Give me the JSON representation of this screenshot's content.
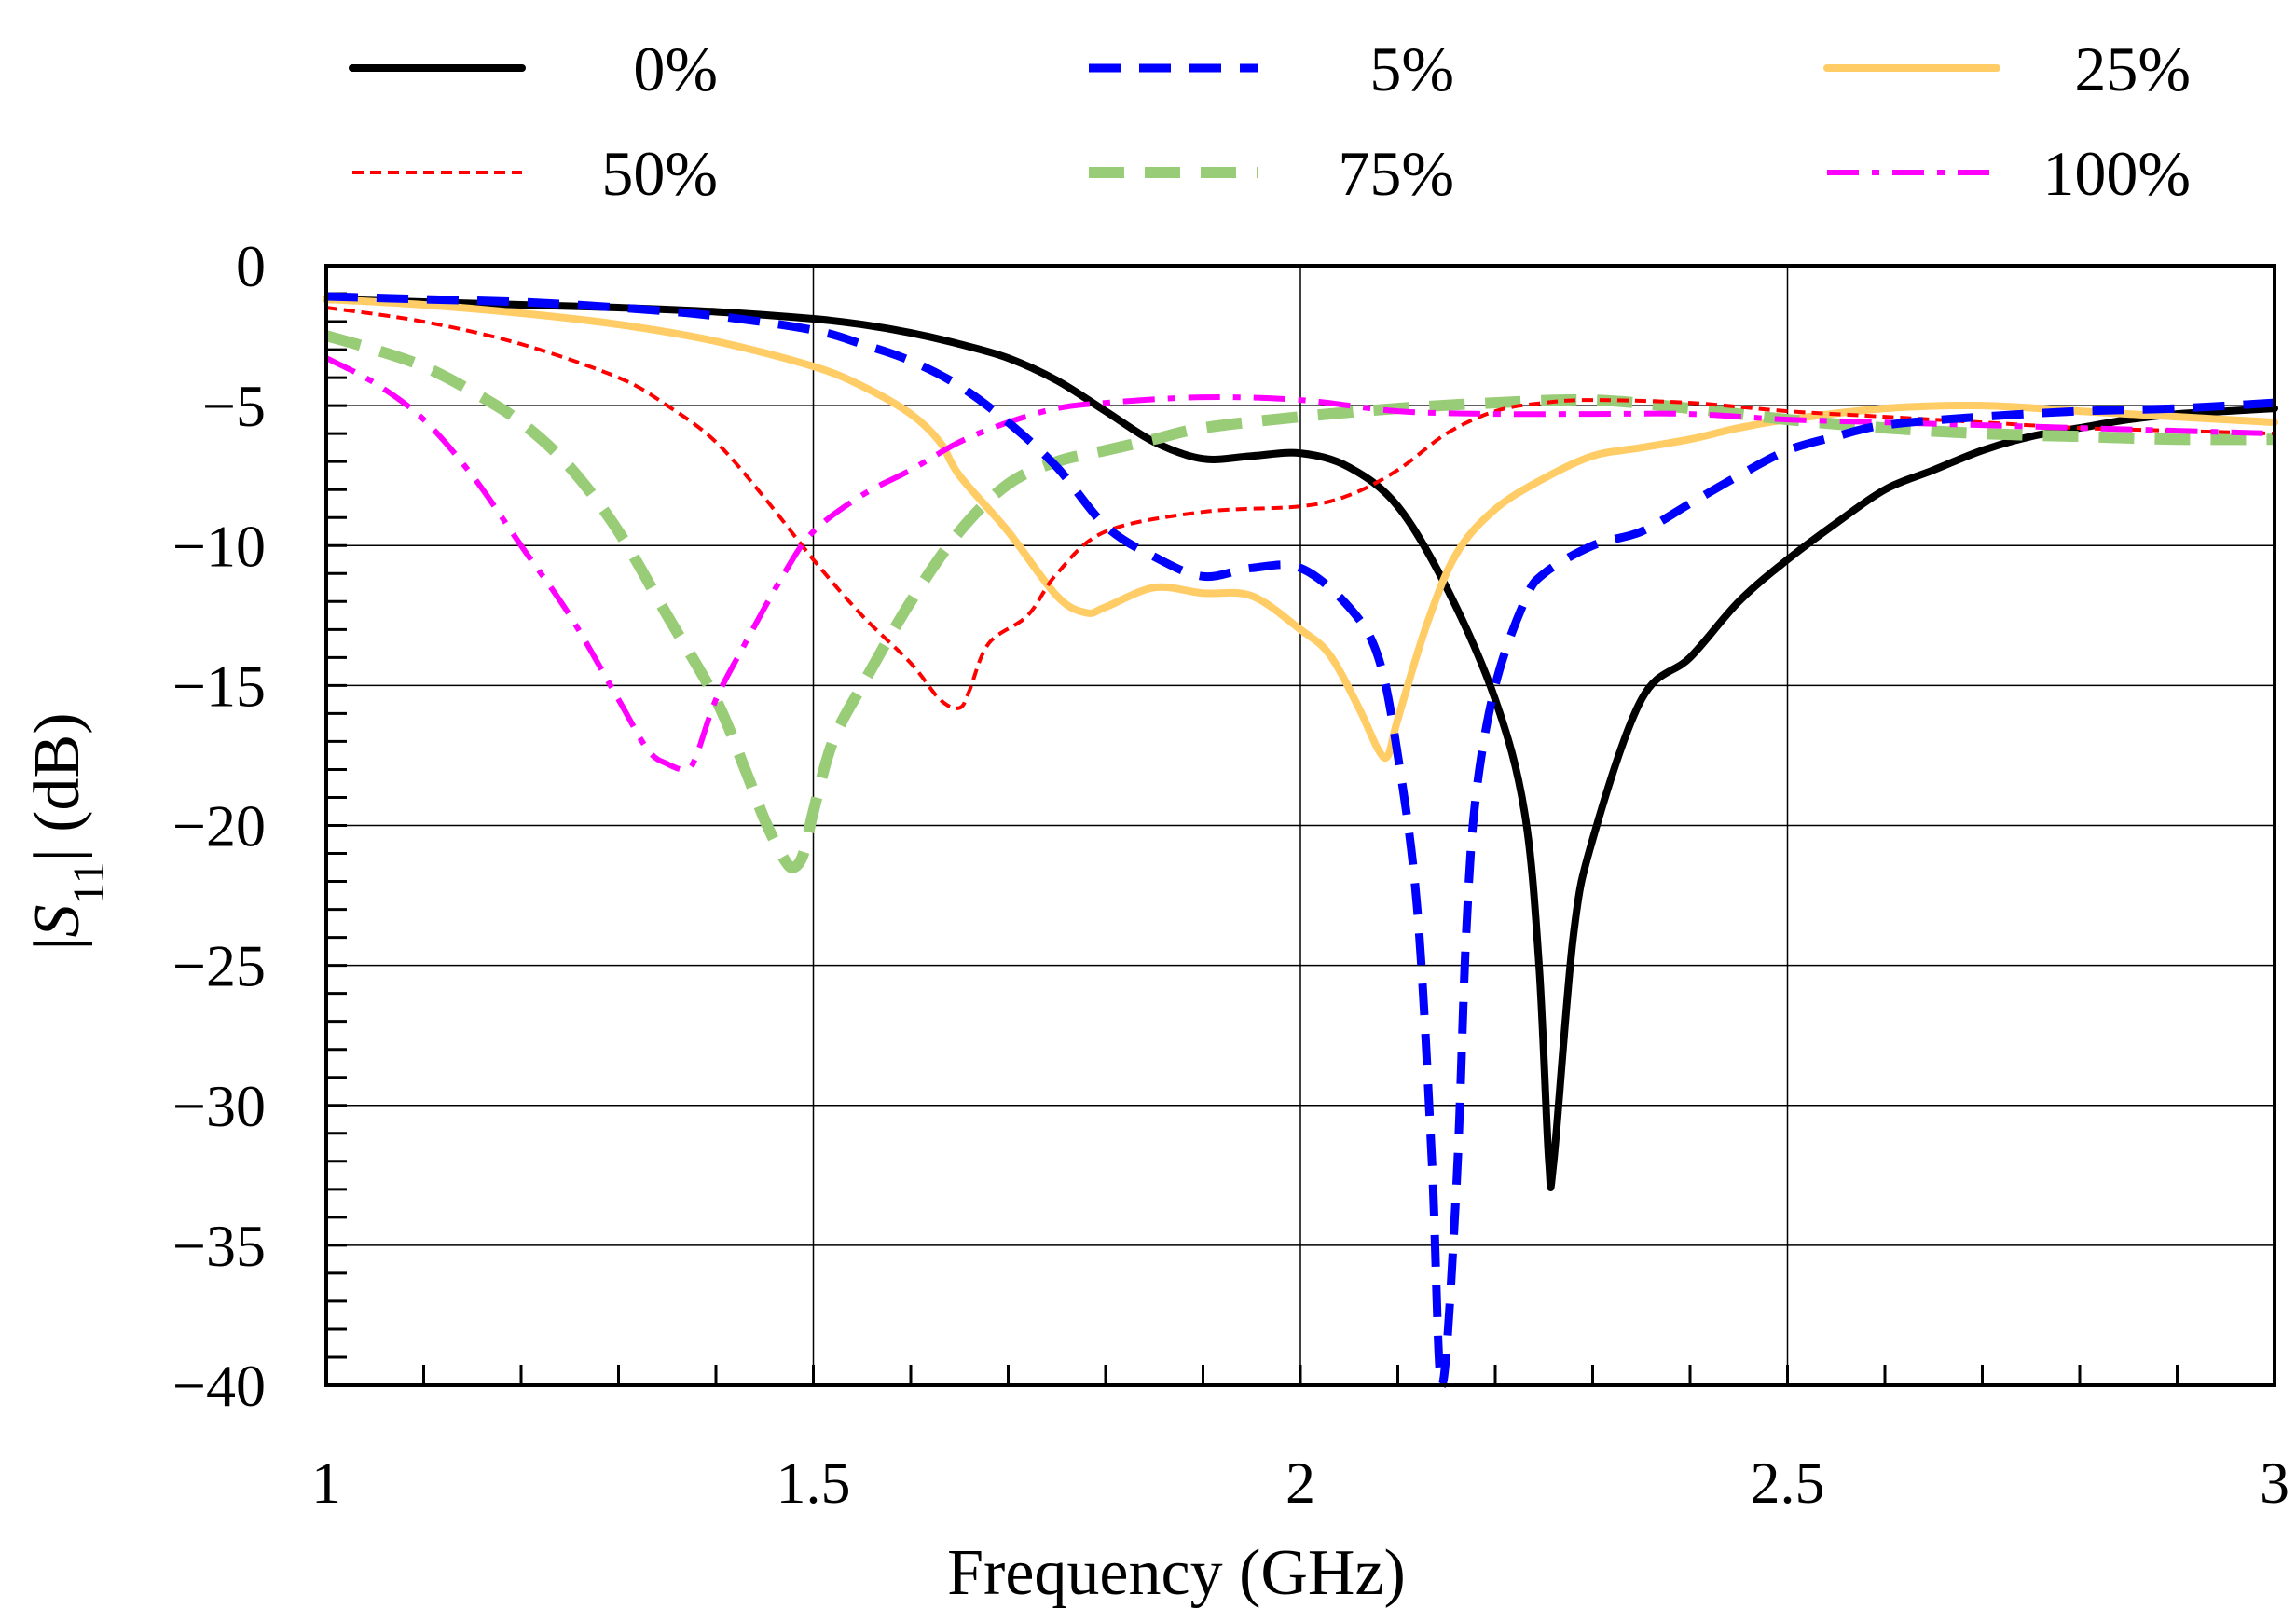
{
  "chart_data": {
    "type": "line",
    "title": "",
    "xlabel": "Frequency (GHz)",
    "ylabel": "|S11| (dB)",
    "ylabel_parts": {
      "pre": "|",
      "symbol": "S",
      "sub": "11",
      "post": "| (dB)"
    },
    "xlim": [
      1,
      3
    ],
    "ylim": [
      -40,
      0
    ],
    "xticks": [
      1,
      1.5,
      2,
      2.5,
      3
    ],
    "xtick_labels": [
      "1",
      "1.5",
      "2",
      "2.5",
      "3"
    ],
    "yticks": [
      0,
      -5,
      -10,
      -15,
      -20,
      -25,
      -30,
      -35,
      -40
    ],
    "ytick_labels": [
      "0",
      "−5",
      "−10",
      "−15",
      "−20",
      "−25",
      "−30",
      "−35",
      "−40"
    ],
    "grid": true,
    "legend_position": "top",
    "series": [
      {
        "name": "0%",
        "color": "#000000",
        "dash": "solid",
        "x": [
          1.0,
          1.1,
          1.2,
          1.3,
          1.4,
          1.5,
          1.55,
          1.6,
          1.65,
          1.7,
          1.75,
          1.8,
          1.85,
          1.9,
          1.95,
          2.0,
          2.05,
          2.1,
          2.15,
          2.2,
          2.23,
          2.245,
          2.255,
          2.26,
          2.28,
          2.3,
          2.35,
          2.4,
          2.45,
          2.5,
          2.55,
          2.6,
          2.65,
          2.7,
          2.75,
          2.8,
          2.85,
          2.9,
          2.95,
          3.0
        ],
        "y": [
          -1.2,
          -1.3,
          -1.4,
          -1.5,
          -1.65,
          -1.9,
          -2.1,
          -2.4,
          -2.8,
          -3.3,
          -4.1,
          -5.2,
          -6.3,
          -6.9,
          -6.8,
          -6.7,
          -7.2,
          -8.6,
          -11.5,
          -15.5,
          -19.5,
          -25.0,
          -32.0,
          -32.0,
          -24.0,
          -20.5,
          -15.5,
          -14.0,
          -12.0,
          -10.5,
          -9.2,
          -8.0,
          -7.3,
          -6.6,
          -6.1,
          -5.8,
          -5.5,
          -5.3,
          -5.2,
          -5.1
        ]
      },
      {
        "name": "5%",
        "color": "#0000FF",
        "dash": "dashed",
        "x": [
          1.0,
          1.1,
          1.2,
          1.3,
          1.4,
          1.5,
          1.55,
          1.6,
          1.65,
          1.7,
          1.75,
          1.8,
          1.85,
          1.9,
          1.95,
          2.0,
          2.05,
          2.08,
          2.1,
          2.12,
          2.135,
          2.145,
          2.16,
          2.17,
          2.18,
          2.2,
          2.23,
          2.25,
          2.3,
          2.35,
          2.4,
          2.45,
          2.5,
          2.55,
          2.6,
          2.7,
          2.8,
          2.9,
          3.0
        ],
        "y": [
          -1.1,
          -1.2,
          -1.3,
          -1.5,
          -1.8,
          -2.3,
          -2.8,
          -3.4,
          -4.3,
          -5.6,
          -7.2,
          -9.3,
          -10.4,
          -11.1,
          -10.8,
          -10.8,
          -12.2,
          -14.0,
          -17.5,
          -23.0,
          -32.0,
          -40.0,
          -33.0,
          -24.0,
          -19.0,
          -15.0,
          -12.0,
          -11.0,
          -10.0,
          -9.5,
          -8.5,
          -7.5,
          -6.6,
          -6.1,
          -5.7,
          -5.4,
          -5.2,
          -5.1,
          -4.9
        ]
      },
      {
        "name": "25%",
        "color": "#FFCC66",
        "dash": "solid",
        "x": [
          1.0,
          1.1,
          1.2,
          1.3,
          1.4,
          1.5,
          1.55,
          1.6,
          1.63,
          1.65,
          1.7,
          1.75,
          1.78,
          1.8,
          1.85,
          1.9,
          1.95,
          2.0,
          2.03,
          2.06,
          2.08,
          2.09,
          2.1,
          2.13,
          2.16,
          2.2,
          2.25,
          2.3,
          2.35,
          2.4,
          2.45,
          2.5,
          2.6,
          2.7,
          2.8,
          2.9,
          3.0
        ],
        "y": [
          -1.2,
          -1.4,
          -1.7,
          -2.1,
          -2.7,
          -3.6,
          -4.3,
          -5.3,
          -6.3,
          -7.5,
          -9.5,
          -11.8,
          -12.4,
          -12.2,
          -11.5,
          -11.7,
          -11.8,
          -13.0,
          -13.9,
          -15.8,
          -17.3,
          -17.5,
          -16.2,
          -12.8,
          -10.3,
          -8.7,
          -7.6,
          -6.8,
          -6.5,
          -6.2,
          -5.8,
          -5.5,
          -5.1,
          -5.0,
          -5.2,
          -5.4,
          -5.6
        ]
      },
      {
        "name": "50%",
        "color": "#FF0000",
        "dash": "dotted",
        "x": [
          1.0,
          1.1,
          1.2,
          1.3,
          1.35,
          1.4,
          1.45,
          1.5,
          1.55,
          1.6,
          1.63,
          1.65,
          1.66,
          1.68,
          1.72,
          1.75,
          1.8,
          1.9,
          2.0,
          2.05,
          2.1,
          2.15,
          2.2,
          2.25,
          2.3,
          2.4,
          2.5,
          2.6,
          2.7,
          2.8,
          2.9,
          3.0
        ],
        "y": [
          -1.5,
          -2.0,
          -2.8,
          -4.0,
          -5.0,
          -6.3,
          -8.3,
          -10.5,
          -12.5,
          -14.2,
          -15.5,
          -15.8,
          -15.2,
          -13.5,
          -12.5,
          -11.0,
          -9.5,
          -8.8,
          -8.6,
          -8.2,
          -7.3,
          -6.0,
          -5.2,
          -4.9,
          -4.8,
          -4.9,
          -5.2,
          -5.4,
          -5.6,
          -5.8,
          -5.9,
          -6.0
        ]
      },
      {
        "name": "75%",
        "color": "#99CC77",
        "dash": "dashed",
        "x": [
          1.0,
          1.05,
          1.1,
          1.15,
          1.2,
          1.25,
          1.3,
          1.35,
          1.4,
          1.43,
          1.45,
          1.47,
          1.48,
          1.49,
          1.5,
          1.52,
          1.55,
          1.6,
          1.65,
          1.7,
          1.75,
          1.8,
          1.85,
          1.9,
          2.0,
          2.1,
          2.2,
          2.3,
          2.4,
          2.5,
          2.6,
          2.7,
          2.8,
          2.9,
          3.0
        ],
        "y": [
          -2.5,
          -3.0,
          -3.6,
          -4.5,
          -5.6,
          -7.2,
          -9.5,
          -12.5,
          -15.5,
          -18.0,
          -19.8,
          -21.2,
          -21.5,
          -21.0,
          -19.5,
          -17.0,
          -15.0,
          -12.0,
          -9.5,
          -7.8,
          -7.0,
          -6.6,
          -6.2,
          -5.8,
          -5.4,
          -5.1,
          -4.9,
          -4.8,
          -5.1,
          -5.5,
          -5.8,
          -6.0,
          -6.1,
          -6.2,
          -6.2
        ]
      },
      {
        "name": "100%",
        "color": "#FF00FF",
        "dash": "dashdot",
        "x": [
          1.0,
          1.05,
          1.1,
          1.15,
          1.2,
          1.25,
          1.3,
          1.33,
          1.35,
          1.37,
          1.38,
          1.4,
          1.43,
          1.47,
          1.5,
          1.55,
          1.6,
          1.65,
          1.7,
          1.75,
          1.8,
          1.9,
          2.0,
          2.1,
          2.2,
          2.3,
          2.4,
          2.5,
          2.6,
          2.7,
          2.8,
          2.9,
          3.0
        ],
        "y": [
          -3.3,
          -4.2,
          -5.5,
          -7.5,
          -10.0,
          -12.5,
          -15.5,
          -17.3,
          -17.8,
          -18.0,
          -17.5,
          -15.5,
          -13.5,
          -11.0,
          -9.5,
          -8.2,
          -7.3,
          -6.3,
          -5.6,
          -5.1,
          -4.9,
          -4.7,
          -4.8,
          -5.2,
          -5.3,
          -5.3,
          -5.3,
          -5.5,
          -5.6,
          -5.7,
          -5.8,
          -5.9,
          -6.0
        ]
      }
    ]
  }
}
